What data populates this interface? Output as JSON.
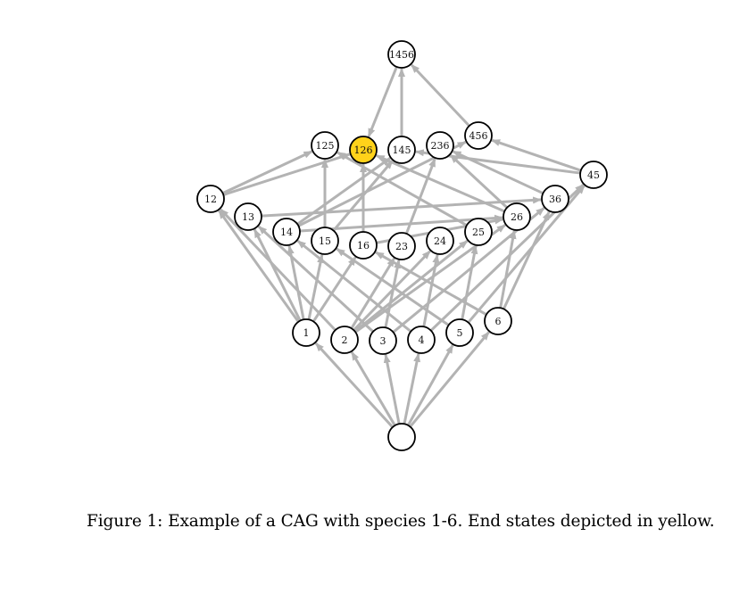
{
  "diagram": {
    "nodes": [
      {
        "id": "root",
        "label": "",
        "end_state": false
      },
      {
        "id": "1",
        "label": "1",
        "end_state": false
      },
      {
        "id": "2",
        "label": "2",
        "end_state": false
      },
      {
        "id": "3",
        "label": "3",
        "end_state": false
      },
      {
        "id": "4",
        "label": "4",
        "end_state": false
      },
      {
        "id": "5",
        "label": "5",
        "end_state": false
      },
      {
        "id": "6",
        "label": "6",
        "end_state": false
      },
      {
        "id": "12",
        "label": "12",
        "end_state": false
      },
      {
        "id": "13",
        "label": "13",
        "end_state": false
      },
      {
        "id": "14",
        "label": "14",
        "end_state": false
      },
      {
        "id": "15",
        "label": "15",
        "end_state": false
      },
      {
        "id": "16",
        "label": "16",
        "end_state": false
      },
      {
        "id": "23",
        "label": "23",
        "end_state": false
      },
      {
        "id": "24",
        "label": "24",
        "end_state": false
      },
      {
        "id": "25",
        "label": "25",
        "end_state": false
      },
      {
        "id": "26",
        "label": "26",
        "end_state": false
      },
      {
        "id": "36",
        "label": "36",
        "end_state": false
      },
      {
        "id": "45",
        "label": "45",
        "end_state": false
      },
      {
        "id": "125",
        "label": "125",
        "end_state": false
      },
      {
        "id": "126",
        "label": "126",
        "end_state": true
      },
      {
        "id": "145",
        "label": "145",
        "end_state": false
      },
      {
        "id": "236",
        "label": "236",
        "end_state": false
      },
      {
        "id": "456",
        "label": "456",
        "end_state": false
      },
      {
        "id": "1456",
        "label": "1456",
        "end_state": false
      }
    ],
    "edges": [
      [
        "root",
        "1"
      ],
      [
        "root",
        "2"
      ],
      [
        "root",
        "3"
      ],
      [
        "root",
        "4"
      ],
      [
        "root",
        "5"
      ],
      [
        "root",
        "6"
      ],
      [
        "1",
        "12"
      ],
      [
        "2",
        "12"
      ],
      [
        "1",
        "13"
      ],
      [
        "3",
        "13"
      ],
      [
        "1",
        "14"
      ],
      [
        "4",
        "14"
      ],
      [
        "1",
        "15"
      ],
      [
        "5",
        "15"
      ],
      [
        "1",
        "16"
      ],
      [
        "6",
        "16"
      ],
      [
        "2",
        "23"
      ],
      [
        "3",
        "23"
      ],
      [
        "2",
        "24"
      ],
      [
        "4",
        "24"
      ],
      [
        "2",
        "25"
      ],
      [
        "5",
        "25"
      ],
      [
        "2",
        "26"
      ],
      [
        "6",
        "26"
      ],
      [
        "3",
        "36"
      ],
      [
        "6",
        "36"
      ],
      [
        "4",
        "45"
      ],
      [
        "5",
        "45"
      ],
      [
        "12",
        "125"
      ],
      [
        "15",
        "125"
      ],
      [
        "25",
        "125"
      ],
      [
        "12",
        "126"
      ],
      [
        "16",
        "126"
      ],
      [
        "26",
        "126"
      ],
      [
        "14",
        "145"
      ],
      [
        "15",
        "145"
      ],
      [
        "45",
        "145"
      ],
      [
        "23",
        "236"
      ],
      [
        "26",
        "236"
      ],
      [
        "36",
        "236"
      ],
      [
        "45",
        "456"
      ],
      [
        "14",
        "456"
      ],
      [
        "145",
        "1456"
      ],
      [
        "456",
        "1456"
      ],
      [
        "1456",
        "126"
      ],
      [
        "14",
        "26"
      ],
      [
        "13",
        "36"
      ],
      [
        "16",
        "26"
      ]
    ]
  },
  "caption": {
    "text": "Figure 1: Example of a CAG with species 1-6. End states depicted in yellow."
  },
  "colors": {
    "edge": "#b3b3b3",
    "end_state_fill": "#ffd21a",
    "node_fill": "#ffffff",
    "node_stroke": "#000000"
  }
}
